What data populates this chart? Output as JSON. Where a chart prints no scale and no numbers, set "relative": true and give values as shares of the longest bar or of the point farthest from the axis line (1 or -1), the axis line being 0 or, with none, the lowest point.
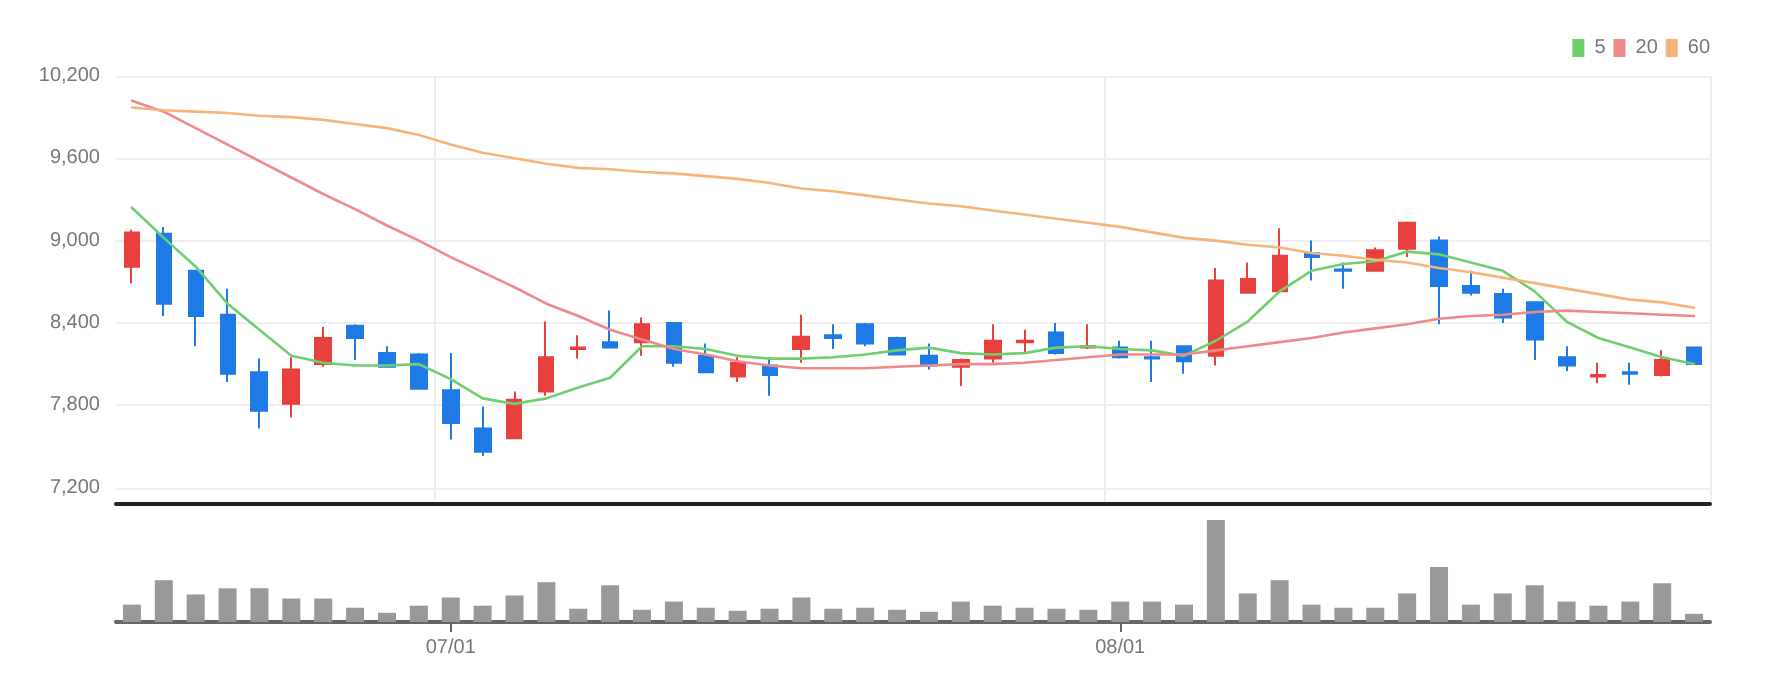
{
  "chart_data": [
    {
      "type": "candlestick",
      "categories": [
        null,
        null,
        null,
        null,
        null,
        null,
        null,
        null,
        null,
        null,
        null,
        null,
        null,
        null,
        null,
        null,
        null,
        null,
        null,
        null,
        null,
        null,
        null,
        null,
        null,
        null,
        null,
        null,
        null,
        null,
        null,
        null,
        null,
        null,
        null,
        null,
        null,
        null,
        null,
        null,
        null,
        null,
        null,
        null,
        null,
        null,
        null,
        null,
        null,
        null
      ],
      "ohlc": [
        [
          8810,
          9080,
          8690,
          9060
        ],
        [
          9050,
          9100,
          8450,
          8540
        ],
        [
          8780,
          8780,
          8230,
          8450
        ],
        [
          8460,
          8650,
          7970,
          8030
        ],
        [
          8040,
          8140,
          7630,
          7760
        ],
        [
          7810,
          8150,
          7710,
          8060
        ],
        [
          8100,
          8370,
          8080,
          8290
        ],
        [
          8380,
          8390,
          8130,
          8290
        ],
        [
          8180,
          8230,
          8080,
          8080
        ],
        [
          8170,
          8180,
          7920,
          7920
        ],
        [
          7910,
          8180,
          7550,
          7670
        ],
        [
          7630,
          7790,
          7430,
          7460
        ],
        [
          7560,
          7900,
          7560,
          7840
        ],
        [
          7900,
          8410,
          7870,
          8150
        ],
        [
          8210,
          8310,
          8140,
          8220
        ],
        [
          8260,
          8490,
          8220,
          8220
        ],
        [
          8260,
          8440,
          8160,
          8390
        ],
        [
          8400,
          8400,
          8080,
          8110
        ],
        [
          8160,
          8250,
          8040,
          8040
        ],
        [
          8010,
          8150,
          7970,
          8110
        ],
        [
          8090,
          8150,
          7870,
          8020
        ],
        [
          8210,
          8460,
          8110,
          8300
        ],
        [
          8310,
          8390,
          8210,
          8290
        ],
        [
          8390,
          8400,
          8230,
          8250
        ],
        [
          8290,
          8300,
          8170,
          8170
        ],
        [
          8160,
          8250,
          8060,
          8090
        ],
        [
          8080,
          8140,
          7940,
          8130
        ],
        [
          8140,
          8390,
          8110,
          8270
        ],
        [
          8260,
          8350,
          8180,
          8270
        ],
        [
          8330,
          8400,
          8170,
          8180
        ],
        [
          8220,
          8390,
          8210,
          8230
        ],
        [
          8220,
          8270,
          8140,
          8150
        ],
        [
          8150,
          8270,
          7970,
          8140
        ],
        [
          8230,
          8230,
          8030,
          8120
        ],
        [
          8160,
          8800,
          8090,
          8710
        ],
        [
          8620,
          8840,
          8620,
          8720
        ],
        [
          8630,
          9090,
          8630,
          8890
        ],
        [
          8910,
          9000,
          8710,
          8880
        ],
        [
          8790,
          8840,
          8650,
          8780
        ],
        [
          8780,
          8950,
          8780,
          8930
        ],
        [
          8940,
          9140,
          8880,
          9130
        ],
        [
          9000,
          9030,
          8390,
          8670
        ],
        [
          8670,
          8780,
          8600,
          8620
        ],
        [
          8610,
          8650,
          8400,
          8440
        ],
        [
          8550,
          8550,
          8130,
          8280
        ],
        [
          8150,
          8230,
          8050,
          8090
        ],
        [
          8010,
          8110,
          7960,
          8020
        ],
        [
          8040,
          8110,
          7950,
          8030
        ],
        [
          8020,
          8200,
          8010,
          8130
        ],
        [
          8220,
          8220,
          8100,
          8100
        ]
      ],
      "colors": [
        "#e8403c",
        "#1e7be6",
        "#1e7be6",
        "#1e7be6",
        "#1e7be6",
        "#e8403c",
        "#e8403c",
        "#1e7be6",
        "#1e7be6",
        "#1e7be6",
        "#1e7be6",
        "#1e7be6",
        "#e8403c",
        "#e8403c",
        "#e8403c",
        "#1e7be6",
        "#e8403c",
        "#1e7be6",
        "#1e7be6",
        "#e8403c",
        "#1e7be6",
        "#e8403c",
        "#1e7be6",
        "#1e7be6",
        "#1e7be6",
        "#1e7be6",
        "#e8403c",
        "#e8403c",
        "#e8403c",
        "#1e7be6",
        "#e8403c",
        "#1e7be6",
        "#1e7be6",
        "#1e7be6",
        "#e8403c",
        "#e8403c",
        "#e8403c",
        "#1e7be6",
        "#1e7be6",
        "#e8403c",
        "#e8403c",
        "#1e7be6",
        "#1e7be6",
        "#1e7be6",
        "#1e7be6",
        "#1e7be6",
        "#e8403c",
        "#1e7be6",
        "#e8403c",
        "#1e7be6"
      ],
      "series": [
        {
          "type": "line",
          "name": "5",
          "color": "#6fcf6f",
          "values": [
            9240,
            9020,
            8810,
            8540,
            8350,
            8160,
            8110,
            8090,
            8090,
            8100,
            7990,
            7850,
            7810,
            7850,
            7930,
            8000,
            8230,
            8230,
            8210,
            8160,
            8140,
            8140,
            8150,
            8170,
            8200,
            8220,
            8180,
            8170,
            8180,
            8220,
            8230,
            8210,
            8200,
            8160,
            8270,
            8410,
            8630,
            8780,
            8830,
            8850,
            8920,
            8900,
            8840,
            8780,
            8630,
            8410,
            8290,
            8220,
            8150,
            8100
          ]
        },
        {
          "type": "line",
          "name": "20",
          "color": "#f08a8a",
          "values": [
            10020,
            9940,
            9820,
            9700,
            9580,
            9460,
            9340,
            9230,
            9110,
            9000,
            8880,
            8770,
            8660,
            8540,
            8450,
            8350,
            8280,
            8210,
            8170,
            8120,
            8090,
            8070,
            8070,
            8070,
            8080,
            8090,
            8100,
            8100,
            8110,
            8130,
            8150,
            8170,
            8170,
            8170,
            8200,
            8230,
            8260,
            8290,
            8330,
            8360,
            8390,
            8430,
            8450,
            8460,
            8480,
            8490,
            8480,
            8470,
            8460,
            8450
          ]
        },
        {
          "type": "line",
          "name": "60",
          "color": "#f5b57a",
          "values": [
            9970,
            9950,
            9940,
            9930,
            9910,
            9900,
            9880,
            9850,
            9820,
            9770,
            9700,
            9640,
            9600,
            9560,
            9530,
            9520,
            9500,
            9490,
            9470,
            9450,
            9420,
            9380,
            9360,
            9330,
            9300,
            9270,
            9250,
            9220,
            9190,
            9160,
            9130,
            9100,
            9060,
            9020,
            9000,
            8970,
            8950,
            8910,
            8890,
            8860,
            8840,
            8800,
            8770,
            8730,
            8690,
            8650,
            8610,
            8570,
            8550,
            8510
          ]
        }
      ],
      "ylim": [
        7080,
        10200
      ],
      "yticks": [
        {
          "value": 7200,
          "label": "7,200"
        },
        {
          "value": 7800,
          "label": "7,800"
        },
        {
          "value": 8400,
          "label": "8,400"
        },
        {
          "value": 9000,
          "label": "9,000"
        },
        {
          "value": 9600,
          "label": "9,600"
        },
        {
          "value": 10200,
          "label": "10,200"
        }
      ],
      "grid": true,
      "legend": "top right",
      "tick_labels": "y",
      "marker": "none"
    },
    {
      "type": "bar",
      "categories": [
        null,
        null,
        null,
        null,
        null,
        null,
        null,
        null,
        null,
        null,
        "07/01",
        null,
        null,
        null,
        null,
        null,
        null,
        null,
        null,
        null,
        null,
        null,
        null,
        null,
        null,
        null,
        null,
        null,
        null,
        null,
        null,
        "08/01",
        null,
        null,
        null,
        null,
        null,
        null,
        null,
        null,
        null,
        null,
        null,
        null,
        null,
        null,
        null,
        null,
        null,
        null
      ],
      "values": [
        0.17,
        0.41,
        0.27,
        0.33,
        0.33,
        0.23,
        0.23,
        0.14,
        0.09,
        0.16,
        0.24,
        0.16,
        0.26,
        0.39,
        0.13,
        0.36,
        0.12,
        0.2,
        0.14,
        0.11,
        0.13,
        0.24,
        0.13,
        0.14,
        0.12,
        0.1,
        0.2,
        0.16,
        0.14,
        0.13,
        0.12,
        0.2,
        0.2,
        0.17,
        1,
        0.28,
        0.41,
        0.17,
        0.14,
        0.14,
        0.28,
        0.54,
        0.17,
        0.28,
        0.36,
        0.2,
        0.16,
        0.2,
        0.38,
        0.08
      ],
      "color": "#999999",
      "relative": true,
      "tick_labels": "x"
    }
  ]
}
